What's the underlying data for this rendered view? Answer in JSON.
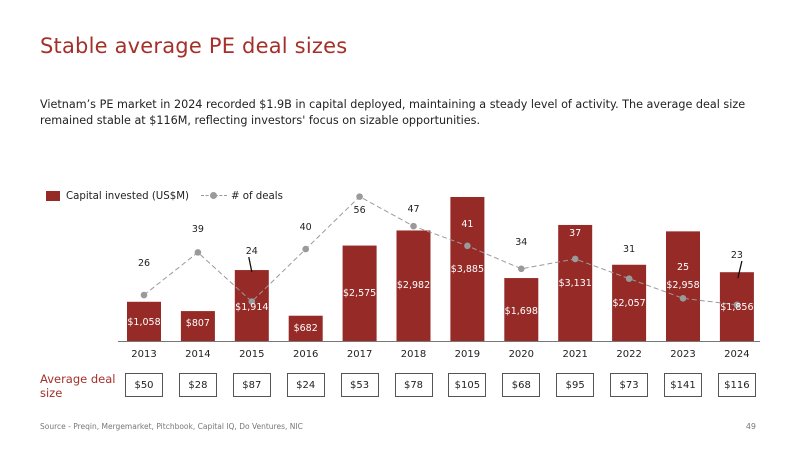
{
  "title": "Stable average PE deal sizes",
  "subtitle": "Vietnam’s PE market in 2024 recorded $1.9B in capital deployed, maintaining a steady level of activity. The average deal size remained stable at $116M, reflecting investors' focus on sizable opportunities.",
  "legend": {
    "bar_label": "Capital invested (US$M)",
    "line_label": "# of deals"
  },
  "avg_deal_label": "Average deal size",
  "source": "Source - Preqin, Mergemarket, Pitchbook, Capital IQ, Do Ventures, NIC",
  "page_number": "49",
  "colors": {
    "bar": "#962a27",
    "line": "#9a9a9a",
    "title": "#a5302a"
  },
  "chart_data": {
    "type": "bar",
    "categories": [
      "2013",
      "2014",
      "2015",
      "2016",
      "2017",
      "2018",
      "2019",
      "2020",
      "2021",
      "2022",
      "2023",
      "2024"
    ],
    "series": [
      {
        "name": "Capital invested (US$M)",
        "type": "bar",
        "values": [
          1058,
          807,
          1914,
          682,
          2575,
          2982,
          3885,
          1698,
          3131,
          2057,
          2958,
          1856
        ],
        "labels": [
          "$1,058",
          "$807",
          "$1,914",
          "$682",
          "$2,575",
          "$2,982",
          "$3,885",
          "$1,698",
          "$3,131",
          "$2,057",
          "$2,958",
          "$1,856"
        ]
      },
      {
        "name": "# of deals",
        "type": "line",
        "values": [
          26,
          39,
          24,
          40,
          56,
          47,
          41,
          34,
          37,
          31,
          25,
          23
        ],
        "labels": [
          "26",
          "39",
          "24",
          "40",
          "56",
          "47",
          "41",
          "34",
          "37",
          "31",
          "25",
          "23"
        ]
      }
    ],
    "average_deal_size": [
      "$50",
      "$28",
      "$87",
      "$24",
      "$53",
      "$78",
      "$105",
      "$68",
      "$95",
      "$73",
      "$141",
      "$116"
    ],
    "legend_position": "top-left",
    "grid": false
  }
}
